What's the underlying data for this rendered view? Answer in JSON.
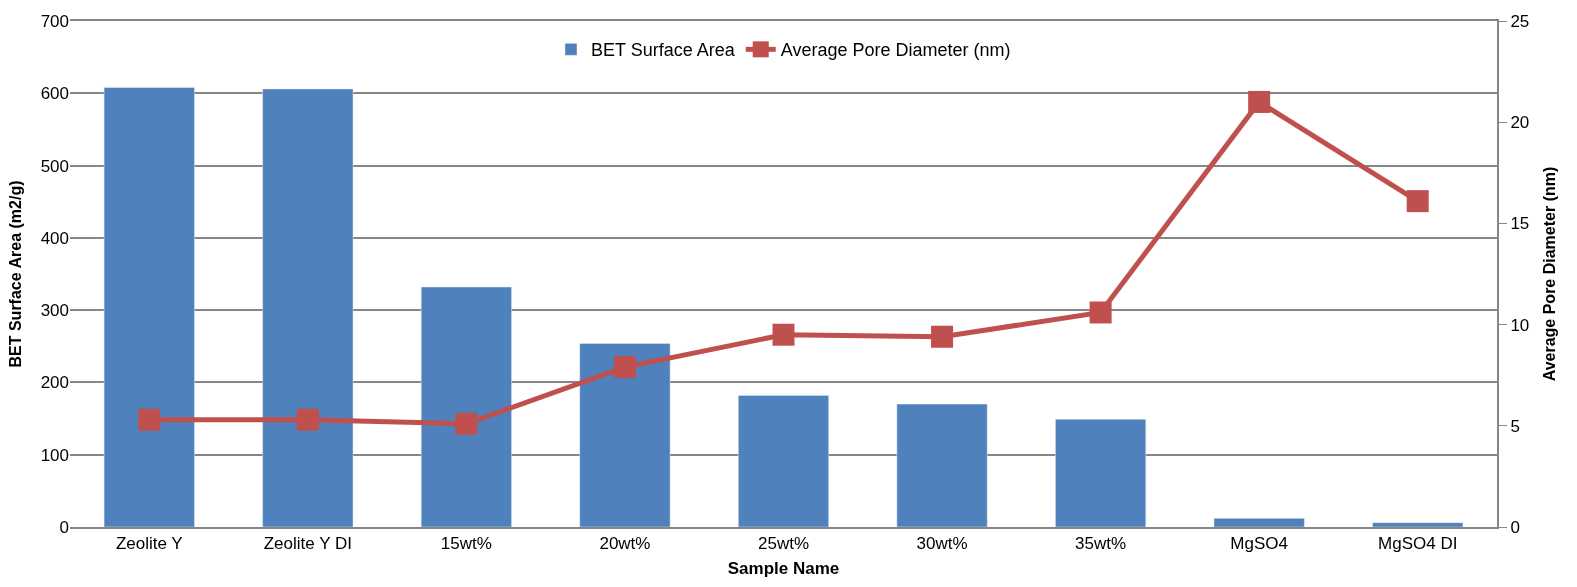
{
  "chart_data": {
    "type": "bar",
    "xlabel": "Sample Name",
    "ylabel": "BET Surface Area (m2/g)",
    "y2label": "Average Pore Diameter (nm)",
    "categories": [
      "Zeolite Y",
      "Zeolite Y DI",
      "15wt%",
      "20wt%",
      "25wt%",
      "30wt%",
      "35wt%",
      "MgSO4",
      "MgSO4 DI"
    ],
    "series": [
      {
        "name": "BET Surface Area",
        "color": "#4f81bd",
        "values": [
          608,
          606,
          332,
          254,
          182,
          170,
          149,
          12,
          6
        ]
      },
      {
        "name": "Average Pore Diameter (nm)",
        "type": "line",
        "axis": "y2",
        "color": "#c0504d",
        "marker": "square",
        "values": [
          5.3,
          5.3,
          5.1,
          7.9,
          9.5,
          9.4,
          10.6,
          21.0,
          16.1
        ]
      }
    ],
    "ylim": [
      0,
      700
    ],
    "yticks": [
      0,
      100,
      200,
      300,
      400,
      500,
      600,
      700
    ],
    "y2lim": [
      0,
      25
    ],
    "y2ticks": [
      0,
      5,
      10,
      15,
      20,
      25
    ],
    "grid": "y",
    "legend": "top"
  }
}
